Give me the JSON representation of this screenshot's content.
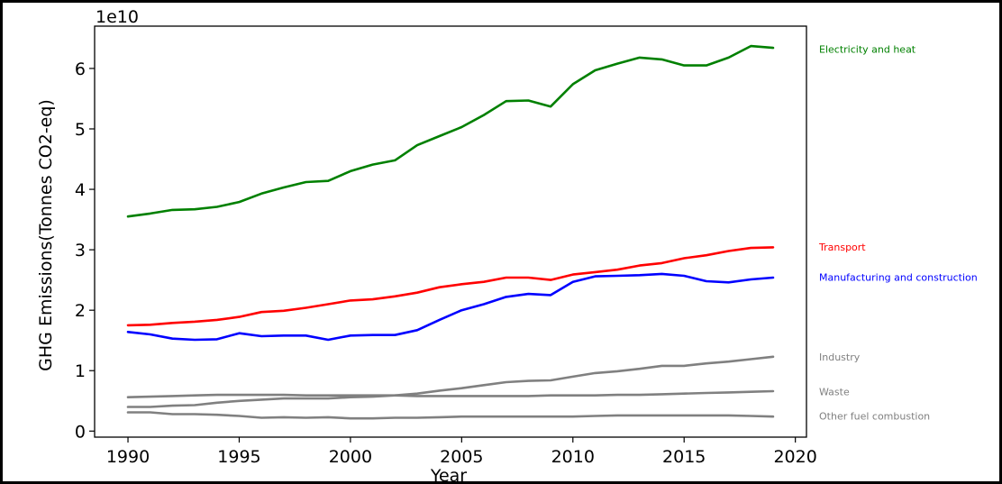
{
  "chart_data": {
    "type": "line",
    "title": "",
    "xlabel": "Year",
    "ylabel": "GHG Emissions(Tonnes CO2-eq)",
    "offset_text": "1e10",
    "xlim": [
      1988.5,
      2020.5
    ],
    "ylim": [
      -0.1,
      6.7
    ],
    "y_unit": "1e10 tonnes CO2-eq",
    "x_ticks": [
      1990,
      1995,
      2000,
      2005,
      2010,
      2015,
      2020
    ],
    "y_ticks": [
      0,
      1,
      2,
      3,
      4,
      5,
      6
    ],
    "grid": false,
    "legend": "series labels placed to the right of the plot area",
    "x": [
      1990,
      1991,
      1992,
      1993,
      1994,
      1995,
      1996,
      1997,
      1998,
      1999,
      2000,
      2001,
      2002,
      2003,
      2004,
      2005,
      2006,
      2007,
      2008,
      2009,
      2010,
      2011,
      2012,
      2013,
      2014,
      2015,
      2016,
      2017,
      2018,
      2019
    ],
    "series": [
      {
        "name": "Electricity and heat",
        "color": "#008000",
        "values": [
          3.55,
          3.6,
          3.66,
          3.67,
          3.71,
          3.79,
          3.93,
          4.03,
          4.12,
          4.14,
          4.3,
          4.41,
          4.48,
          4.73,
          4.88,
          5.03,
          5.23,
          5.46,
          5.47,
          5.37,
          5.74,
          5.97,
          6.08,
          6.18,
          6.15,
          6.05,
          6.05,
          6.18,
          6.37,
          6.34
        ]
      },
      {
        "name": "Transport",
        "color": "#ff0000",
        "values": [
          1.75,
          1.76,
          1.79,
          1.81,
          1.84,
          1.89,
          1.97,
          1.99,
          2.04,
          2.1,
          2.16,
          2.18,
          2.23,
          2.29,
          2.38,
          2.43,
          2.47,
          2.54,
          2.54,
          2.5,
          2.59,
          2.63,
          2.67,
          2.74,
          2.78,
          2.86,
          2.91,
          2.98,
          3.03,
          3.04
        ]
      },
      {
        "name": "Manufacturing and construction",
        "color": "#0000ff",
        "values": [
          1.64,
          1.6,
          1.53,
          1.51,
          1.52,
          1.62,
          1.57,
          1.58,
          1.58,
          1.51,
          1.58,
          1.59,
          1.59,
          1.67,
          1.84,
          2.0,
          2.1,
          2.22,
          2.27,
          2.25,
          2.47,
          2.56,
          2.57,
          2.58,
          2.6,
          2.57,
          2.48,
          2.46,
          2.51,
          2.54
        ]
      },
      {
        "name": "Industry",
        "color": "#808080",
        "values": [
          0.4,
          0.4,
          0.42,
          0.43,
          0.47,
          0.5,
          0.52,
          0.54,
          0.54,
          0.54,
          0.56,
          0.57,
          0.59,
          0.62,
          0.67,
          0.71,
          0.76,
          0.81,
          0.83,
          0.84,
          0.9,
          0.96,
          0.99,
          1.03,
          1.08,
          1.08,
          1.12,
          1.15,
          1.19,
          1.23
        ]
      },
      {
        "name": "Waste",
        "color": "#808080",
        "values": [
          0.56,
          0.57,
          0.58,
          0.59,
          0.6,
          0.6,
          0.6,
          0.6,
          0.59,
          0.59,
          0.59,
          0.59,
          0.59,
          0.58,
          0.58,
          0.58,
          0.58,
          0.58,
          0.58,
          0.59,
          0.59,
          0.59,
          0.6,
          0.6,
          0.61,
          0.62,
          0.63,
          0.64,
          0.65,
          0.66
        ]
      },
      {
        "name": "Other fuel combustion",
        "color": "#808080",
        "values": [
          0.31,
          0.31,
          0.28,
          0.28,
          0.27,
          0.25,
          0.22,
          0.23,
          0.22,
          0.23,
          0.21,
          0.21,
          0.22,
          0.22,
          0.23,
          0.24,
          0.24,
          0.24,
          0.24,
          0.24,
          0.24,
          0.25,
          0.26,
          0.26,
          0.26,
          0.26,
          0.26,
          0.26,
          0.25,
          0.24
        ]
      }
    ],
    "labels_at": [
      {
        "name": "Electricity and heat",
        "y": 6.32
      },
      {
        "name": "Transport",
        "y": 3.05
      },
      {
        "name": "Manufacturing and construction",
        "y": 2.55
      },
      {
        "name": "Industry",
        "y": 1.23
      },
      {
        "name": "Waste",
        "y": 0.65
      },
      {
        "name": "Other fuel combustion",
        "y": 0.25
      }
    ]
  }
}
